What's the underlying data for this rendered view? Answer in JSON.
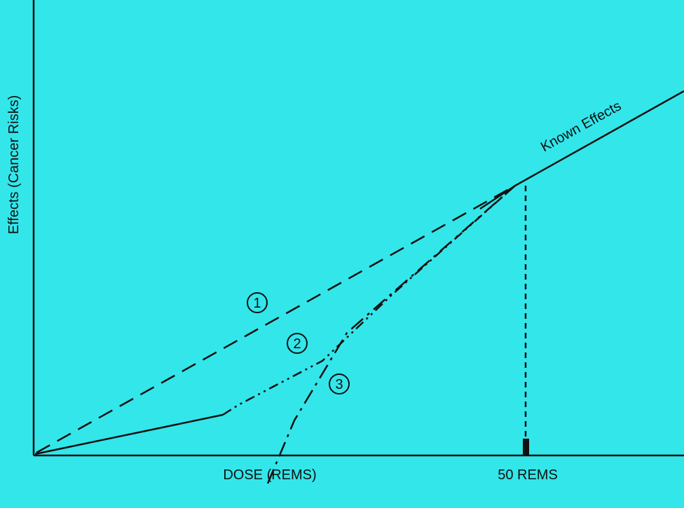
{
  "axes": {
    "y_label": "Effects (Cancer Risks)",
    "x_label": "DOSE (REMS)",
    "x_marker": "50 REMS"
  },
  "curves": {
    "known": "Known Effects",
    "markers": [
      "1",
      "2",
      "3"
    ]
  }
}
